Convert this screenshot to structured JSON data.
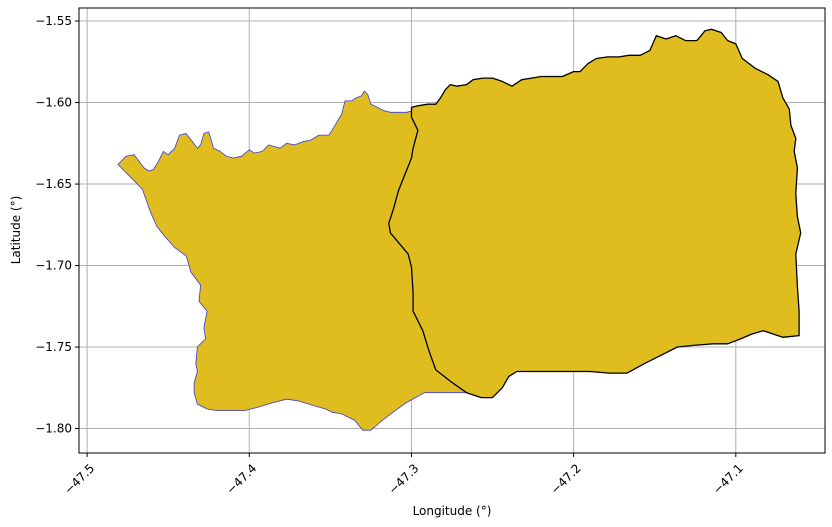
{
  "chart_data": {
    "type": "map",
    "xlabel": "Longitude (°)",
    "ylabel": "Latitude (°)",
    "xlim": [
      -47.505,
      -47.045
    ],
    "ylim": [
      -1.815,
      -1.542
    ],
    "x_ticks": [
      -47.5,
      -47.4,
      -47.3,
      -47.2,
      -47.1
    ],
    "x_tick_labels": [
      "−47.5",
      "−47.4",
      "−47.3",
      "−47.2",
      "−47.1"
    ],
    "y_ticks": [
      -1.55,
      -1.6,
      -1.65,
      -1.7,
      -1.75,
      -1.8
    ],
    "y_tick_labels": [
      "−1.55",
      "−1.60",
      "−1.65",
      "−1.70",
      "−1.75",
      "−1.80"
    ],
    "grid": true,
    "regions": [
      {
        "fill": "#dfbd1f",
        "edge": "#3a3ad8",
        "coords": [
          [
            -47.481,
            -1.638
          ],
          [
            -47.476,
            -1.633
          ],
          [
            -47.471,
            -1.632
          ],
          [
            -47.468,
            -1.636
          ],
          [
            -47.465,
            -1.64
          ],
          [
            -47.462,
            -1.642
          ],
          [
            -47.459,
            -1.641
          ],
          [
            -47.456,
            -1.636
          ],
          [
            -47.453,
            -1.63
          ],
          [
            -47.45,
            -1.632
          ],
          [
            -47.446,
            -1.628
          ],
          [
            -47.443,
            -1.62
          ],
          [
            -47.439,
            -1.619
          ],
          [
            -47.435,
            -1.624
          ],
          [
            -47.432,
            -1.628
          ],
          [
            -47.43,
            -1.626
          ],
          [
            -47.428,
            -1.619
          ],
          [
            -47.425,
            -1.618
          ],
          [
            -47.422,
            -1.628
          ],
          [
            -47.418,
            -1.63
          ],
          [
            -47.414,
            -1.633
          ],
          [
            -47.41,
            -1.634
          ],
          [
            -47.405,
            -1.633
          ],
          [
            -47.4,
            -1.629
          ],
          [
            -47.397,
            -1.631
          ],
          [
            -47.392,
            -1.63
          ],
          [
            -47.388,
            -1.626
          ],
          [
            -47.381,
            -1.628
          ],
          [
            -47.377,
            -1.625
          ],
          [
            -47.372,
            -1.626
          ],
          [
            -47.367,
            -1.624
          ],
          [
            -47.362,
            -1.623
          ],
          [
            -47.357,
            -1.62
          ],
          [
            -47.351,
            -1.62
          ],
          [
            -47.349,
            -1.617
          ],
          [
            -47.346,
            -1.612
          ],
          [
            -47.343,
            -1.607
          ],
          [
            -47.341,
            -1.599
          ],
          [
            -47.337,
            -1.599
          ],
          [
            -47.334,
            -1.597
          ],
          [
            -47.331,
            -1.596
          ],
          [
            -47.329,
            -1.593
          ],
          [
            -47.327,
            -1.595
          ],
          [
            -47.325,
            -1.601
          ],
          [
            -47.321,
            -1.603
          ],
          [
            -47.317,
            -1.605
          ],
          [
            -47.313,
            -1.606
          ],
          [
            -47.308,
            -1.606
          ],
          [
            -47.303,
            -1.606
          ],
          [
            -47.299,
            -1.605
          ],
          [
            -47.296,
            -1.617
          ],
          [
            -47.299,
            -1.628
          ],
          [
            -47.3,
            -1.634
          ],
          [
            -47.304,
            -1.644
          ],
          [
            -47.308,
            -1.654
          ],
          [
            -47.311,
            -1.665
          ],
          [
            -47.314,
            -1.674
          ],
          [
            -47.313,
            -1.68
          ],
          [
            -47.307,
            -1.687
          ],
          [
            -47.302,
            -1.693
          ],
          [
            -47.3,
            -1.701
          ],
          [
            -47.299,
            -1.717
          ],
          [
            -47.299,
            -1.728
          ],
          [
            -47.293,
            -1.74
          ],
          [
            -47.289,
            -1.753
          ],
          [
            -47.285,
            -1.764
          ],
          [
            -47.276,
            -1.771
          ],
          [
            -47.266,
            -1.778
          ],
          [
            -47.277,
            -1.778
          ],
          [
            -47.292,
            -1.778
          ],
          [
            -47.303,
            -1.784
          ],
          [
            -47.31,
            -1.789
          ],
          [
            -47.318,
            -1.795
          ],
          [
            -47.325,
            -1.801
          ],
          [
            -47.33,
            -1.801
          ],
          [
            -47.335,
            -1.795
          ],
          [
            -47.343,
            -1.791
          ],
          [
            -47.349,
            -1.79
          ],
          [
            -47.353,
            -1.788
          ],
          [
            -47.36,
            -1.786
          ],
          [
            -47.37,
            -1.783
          ],
          [
            -47.377,
            -1.782
          ],
          [
            -47.385,
            -1.784
          ],
          [
            -47.395,
            -1.787
          ],
          [
            -47.403,
            -1.789
          ],
          [
            -47.41,
            -1.789
          ],
          [
            -47.42,
            -1.789
          ],
          [
            -47.426,
            -1.788
          ],
          [
            -47.432,
            -1.785
          ],
          [
            -47.434,
            -1.778
          ],
          [
            -47.434,
            -1.772
          ],
          [
            -47.432,
            -1.765
          ],
          [
            -47.433,
            -1.76
          ],
          [
            -47.432,
            -1.75
          ],
          [
            -47.427,
            -1.745
          ],
          [
            -47.428,
            -1.738
          ],
          [
            -47.426,
            -1.728
          ],
          [
            -47.431,
            -1.722
          ],
          [
            -47.43,
            -1.712
          ],
          [
            -47.436,
            -1.704
          ],
          [
            -47.438,
            -1.697
          ],
          [
            -47.439,
            -1.694
          ],
          [
            -47.446,
            -1.689
          ],
          [
            -47.453,
            -1.681
          ],
          [
            -47.457,
            -1.676
          ],
          [
            -47.461,
            -1.667
          ],
          [
            -47.466,
            -1.653
          ],
          [
            -47.472,
            -1.647
          ],
          [
            -47.476,
            -1.643
          ],
          [
            -47.481,
            -1.638
          ]
        ]
      },
      {
        "fill": "#dfbd1f",
        "edge": "#000000",
        "coords": [
          [
            -47.3,
            -1.603
          ],
          [
            -47.296,
            -1.602
          ],
          [
            -47.29,
            -1.601
          ],
          [
            -47.285,
            -1.601
          ],
          [
            -47.282,
            -1.597
          ],
          [
            -47.279,
            -1.592
          ],
          [
            -47.276,
            -1.589
          ],
          [
            -47.272,
            -1.59
          ],
          [
            -47.266,
            -1.589
          ],
          [
            -47.262,
            -1.586
          ],
          [
            -47.256,
            -1.585
          ],
          [
            -47.25,
            -1.585
          ],
          [
            -47.244,
            -1.587
          ],
          [
            -47.238,
            -1.59
          ],
          [
            -47.232,
            -1.586
          ],
          [
            -47.226,
            -1.585
          ],
          [
            -47.22,
            -1.584
          ],
          [
            -47.213,
            -1.584
          ],
          [
            -47.207,
            -1.584
          ],
          [
            -47.2,
            -1.581
          ],
          [
            -47.196,
            -1.581
          ],
          [
            -47.191,
            -1.576
          ],
          [
            -47.186,
            -1.573
          ],
          [
            -47.179,
            -1.572
          ],
          [
            -47.172,
            -1.572
          ],
          [
            -47.166,
            -1.571
          ],
          [
            -47.159,
            -1.571
          ],
          [
            -47.153,
            -1.568
          ],
          [
            -47.149,
            -1.559
          ],
          [
            -47.143,
            -1.561
          ],
          [
            -47.137,
            -1.559
          ],
          [
            -47.131,
            -1.562
          ],
          [
            -47.124,
            -1.562
          ],
          [
            -47.119,
            -1.556
          ],
          [
            -47.115,
            -1.555
          ],
          [
            -47.109,
            -1.557
          ],
          [
            -47.105,
            -1.562
          ],
          [
            -47.1,
            -1.564
          ],
          [
            -47.096,
            -1.573
          ],
          [
            -47.088,
            -1.579
          ],
          [
            -47.08,
            -1.583
          ],
          [
            -47.074,
            -1.587
          ],
          [
            -47.071,
            -1.597
          ],
          [
            -47.067,
            -1.604
          ],
          [
            -47.066,
            -1.614
          ],
          [
            -47.063,
            -1.622
          ],
          [
            -47.064,
            -1.63
          ],
          [
            -47.062,
            -1.64
          ],
          [
            -47.063,
            -1.656
          ],
          [
            -47.062,
            -1.67
          ],
          [
            -47.06,
            -1.68
          ],
          [
            -47.063,
            -1.693
          ],
          [
            -47.062,
            -1.713
          ],
          [
            -47.061,
            -1.728
          ],
          [
            -47.061,
            -1.743
          ],
          [
            -47.071,
            -1.744
          ],
          [
            -47.077,
            -1.742
          ],
          [
            -47.083,
            -1.74
          ],
          [
            -47.09,
            -1.742
          ],
          [
            -47.097,
            -1.745
          ],
          [
            -47.105,
            -1.748
          ],
          [
            -47.114,
            -1.748
          ],
          [
            -47.126,
            -1.749
          ],
          [
            -47.136,
            -1.75
          ],
          [
            -47.146,
            -1.755
          ],
          [
            -47.156,
            -1.76
          ],
          [
            -47.167,
            -1.766
          ],
          [
            -47.178,
            -1.766
          ],
          [
            -47.19,
            -1.765
          ],
          [
            -47.2,
            -1.765
          ],
          [
            -47.211,
            -1.765
          ],
          [
            -47.224,
            -1.765
          ],
          [
            -47.235,
            -1.765
          ],
          [
            -47.24,
            -1.768
          ],
          [
            -47.244,
            -1.775
          ],
          [
            -47.25,
            -1.781
          ],
          [
            -47.257,
            -1.781
          ],
          [
            -47.266,
            -1.778
          ],
          [
            -47.276,
            -1.771
          ],
          [
            -47.285,
            -1.764
          ],
          [
            -47.289,
            -1.753
          ],
          [
            -47.293,
            -1.74
          ],
          [
            -47.299,
            -1.728
          ],
          [
            -47.299,
            -1.717
          ],
          [
            -47.3,
            -1.701
          ],
          [
            -47.302,
            -1.693
          ],
          [
            -47.307,
            -1.687
          ],
          [
            -47.313,
            -1.68
          ],
          [
            -47.314,
            -1.674
          ],
          [
            -47.311,
            -1.665
          ],
          [
            -47.308,
            -1.654
          ],
          [
            -47.304,
            -1.644
          ],
          [
            -47.3,
            -1.634
          ],
          [
            -47.299,
            -1.628
          ],
          [
            -47.296,
            -1.617
          ],
          [
            -47.3,
            -1.609
          ],
          [
            -47.3,
            -1.603
          ]
        ]
      }
    ]
  }
}
